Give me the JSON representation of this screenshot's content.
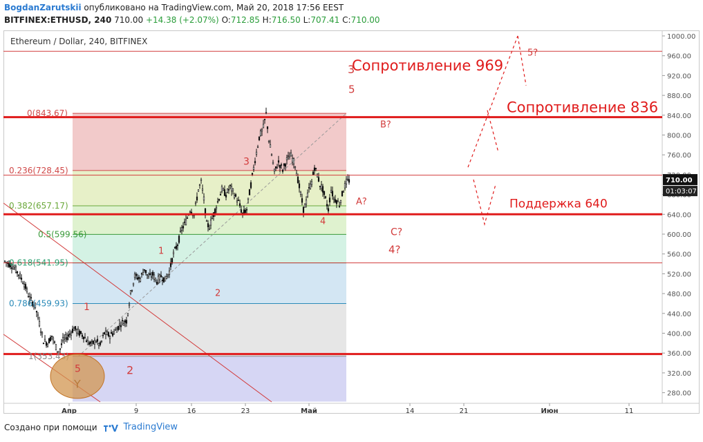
{
  "header": {
    "author": "BogdanZarutskii",
    "published": "опубликовано на TradingView.com, Май 20, 2018 17:56 EEST",
    "symbol": "BITFINEX:ETHUSD, 240",
    "price": "710.00",
    "change": "+14.38 (+2.07%)",
    "o_label": "O:",
    "o_value": "712.85",
    "h_label": "H:",
    "h_value": "716.50",
    "l_label": "L:",
    "l_value": "707.41",
    "c_label": "C:",
    "c_value": "710.00"
  },
  "footer": {
    "created_with": "Создано при помощи",
    "brand": "TradingView"
  },
  "chart_data": {
    "type": "candlestick",
    "title": "Ethereum / Dollar, 240, BITFINEX",
    "ylim": [
      260,
      1020
    ],
    "y_ticks": [
      "1000.00",
      "960.00",
      "920.00",
      "880.00",
      "840.00",
      "800.00",
      "760.00",
      "720.00",
      "680.00",
      "640.00",
      "600.00",
      "560.00",
      "520.00",
      "480.00",
      "440.00",
      "400.00",
      "360.00",
      "320.00",
      "280.00"
    ],
    "x_ticks": [
      "Апр",
      "9",
      "16",
      "23",
      "Май",
      "14",
      "21",
      "Июн",
      "11"
    ],
    "last_price_label": "710.00",
    "countdown_label": "01:03:07",
    "price_path": [
      [
        0,
        545
      ],
      [
        6,
        535
      ],
      [
        10,
        520
      ],
      [
        14,
        500
      ],
      [
        18,
        470
      ],
      [
        22,
        455
      ],
      [
        25,
        420
      ],
      [
        28,
        385
      ],
      [
        31,
        380
      ],
      [
        34,
        395
      ],
      [
        37,
        372
      ],
      [
        39,
        360
      ],
      [
        42,
        385
      ],
      [
        46,
        395
      ],
      [
        50,
        410
      ],
      [
        54,
        400
      ],
      [
        57,
        395
      ],
      [
        60,
        382
      ],
      [
        63,
        378
      ],
      [
        66,
        385
      ],
      [
        69,
        375
      ],
      [
        72,
        400
      ],
      [
        76,
        395
      ],
      [
        80,
        405
      ],
      [
        84,
        420
      ],
      [
        88,
        425
      ],
      [
        91,
        480
      ],
      [
        94,
        515
      ],
      [
        98,
        510
      ],
      [
        101,
        530
      ],
      [
        104,
        512
      ],
      [
        107,
        518
      ],
      [
        110,
        505
      ],
      [
        113,
        515
      ],
      [
        116,
        508
      ],
      [
        119,
        525
      ],
      [
        122,
        560
      ],
      [
        125,
        580
      ],
      [
        128,
        610
      ],
      [
        131,
        625
      ],
      [
        134,
        650
      ],
      [
        137,
        640
      ],
      [
        140,
        690
      ],
      [
        142,
        705
      ],
      [
        144,
        670
      ],
      [
        146,
        620
      ],
      [
        148,
        615
      ],
      [
        151,
        640
      ],
      [
        154,
        665
      ],
      [
        157,
        690
      ],
      [
        160,
        680
      ],
      [
        163,
        695
      ],
      [
        166,
        680
      ],
      [
        169,
        665
      ],
      [
        172,
        640
      ],
      [
        175,
        650
      ],
      [
        178,
        700
      ],
      [
        181,
        750
      ],
      [
        184,
        795
      ],
      [
        187,
        815
      ],
      [
        189,
        843
      ],
      [
        191,
        790
      ],
      [
        193,
        760
      ],
      [
        195,
        725
      ],
      [
        198,
        745
      ],
      [
        201,
        730
      ],
      [
        204,
        750
      ],
      [
        207,
        758
      ],
      [
        210,
        740
      ],
      [
        212,
        710
      ],
      [
        214,
        680
      ],
      [
        216,
        650
      ],
      [
        218,
        665
      ],
      [
        220,
        690
      ],
      [
        222,
        705
      ],
      [
        224,
        735
      ],
      [
        226,
        720
      ],
      [
        228,
        700
      ],
      [
        230,
        690
      ],
      [
        232,
        670
      ],
      [
        234,
        650
      ],
      [
        236,
        690
      ],
      [
        238,
        672
      ],
      [
        240,
        668
      ],
      [
        242,
        660
      ],
      [
        245,
        690
      ],
      [
        247,
        705
      ],
      [
        250,
        710
      ]
    ],
    "fib_levels": [
      {
        "ratio": "0",
        "label": "0(843.67)",
        "price": 843.67,
        "color": "#d04848"
      },
      {
        "ratio": "0.236",
        "label": "0.236(728.45)",
        "price": 728.45,
        "color": "#d04848"
      },
      {
        "ratio": "0.382",
        "label": "0.382(657.17)",
        "price": 657.17,
        "color": "#6aa83a"
      },
      {
        "ratio": "0.5",
        "label": "0.5(599.56)",
        "price": 599.56,
        "color": "#3a9a3a"
      },
      {
        "ratio": "0.618",
        "label": "0.618(541.95)",
        "price": 541.95,
        "color": "#2aa070"
      },
      {
        "ratio": "0.786",
        "label": "0.786(459.93)",
        "price": 459.93,
        "color": "#2a8ab8"
      },
      {
        "ratio": "1",
        "label": "1(353.43)",
        "price": 353.43,
        "color": "#888888"
      }
    ],
    "horizontal_levels": [
      {
        "price": 969,
        "style": "thin"
      },
      {
        "price": 836,
        "style": "thick"
      },
      {
        "price": 719,
        "style": "thin"
      },
      {
        "price": 640,
        "style": "thick"
      },
      {
        "price": 541.95,
        "style": "thin"
      },
      {
        "price": 358,
        "style": "thick"
      }
    ],
    "annotations": {
      "resistance_969": "Сопротивление 969",
      "resistance_836": "Сопротивление 836",
      "support_640": "Поддержка 640",
      "w3_top": "3",
      "w5_top": "5",
      "w3_mid": "3",
      "w1_mid": "1",
      "w2_mid": "2",
      "w1_low": "1",
      "w2_low": "2",
      "w4": "4",
      "w5_low": "5",
      "wY": "Y",
      "wA": "A?",
      "wB": "B?",
      "wC": "C?",
      "w4q": "4?",
      "w5q": "5?"
    }
  }
}
